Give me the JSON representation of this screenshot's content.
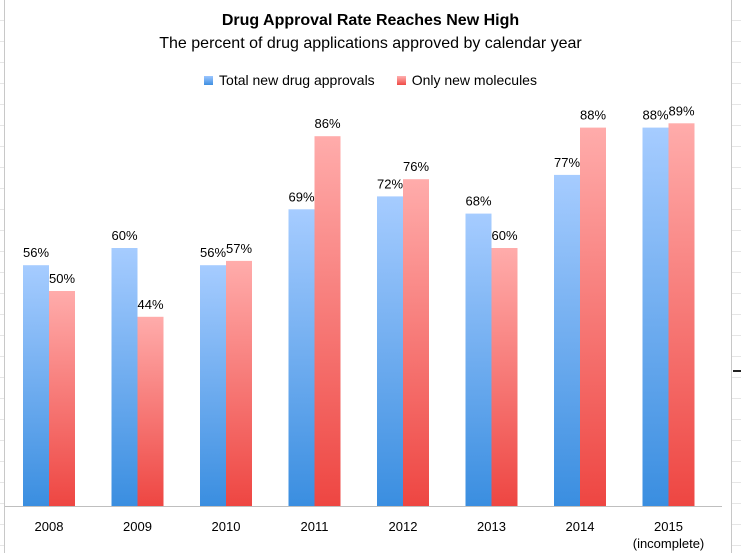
{
  "chart_data": {
    "type": "bar",
    "title": "Drug Approval Rate Reaches New High",
    "subtitle": "The percent of drug applications approved by calendar year",
    "categories": [
      "2008",
      "2009",
      "2010",
      "2011",
      "2012",
      "2013",
      "2014",
      "2015"
    ],
    "category_sublabels": [
      "",
      "",
      "",
      "",
      "",
      "",
      "",
      "(incomplete)"
    ],
    "series": [
      {
        "name": "Total new drug approvals",
        "values": [
          56,
          60,
          56,
          69,
          72,
          68,
          77,
          88
        ],
        "labels": [
          "56%",
          "60%",
          "56%",
          "69%",
          "72%",
          "68%",
          "77%",
          "88%"
        ],
        "color_top": "#a6ccff",
        "color_bottom": "#3a8ee0"
      },
      {
        "name": "Only new molecules",
        "values": [
          50,
          44,
          57,
          86,
          76,
          60,
          88,
          89
        ],
        "labels": [
          "50%",
          "44%",
          "57%",
          "86%",
          "76%",
          "60%",
          "88%",
          "89%"
        ],
        "color_top": "#ffacab",
        "color_bottom": "#ee4642"
      }
    ],
    "ylim": [
      0,
      100
    ],
    "grid": false,
    "legend_position": "top",
    "xlabel": "",
    "ylabel": ""
  }
}
